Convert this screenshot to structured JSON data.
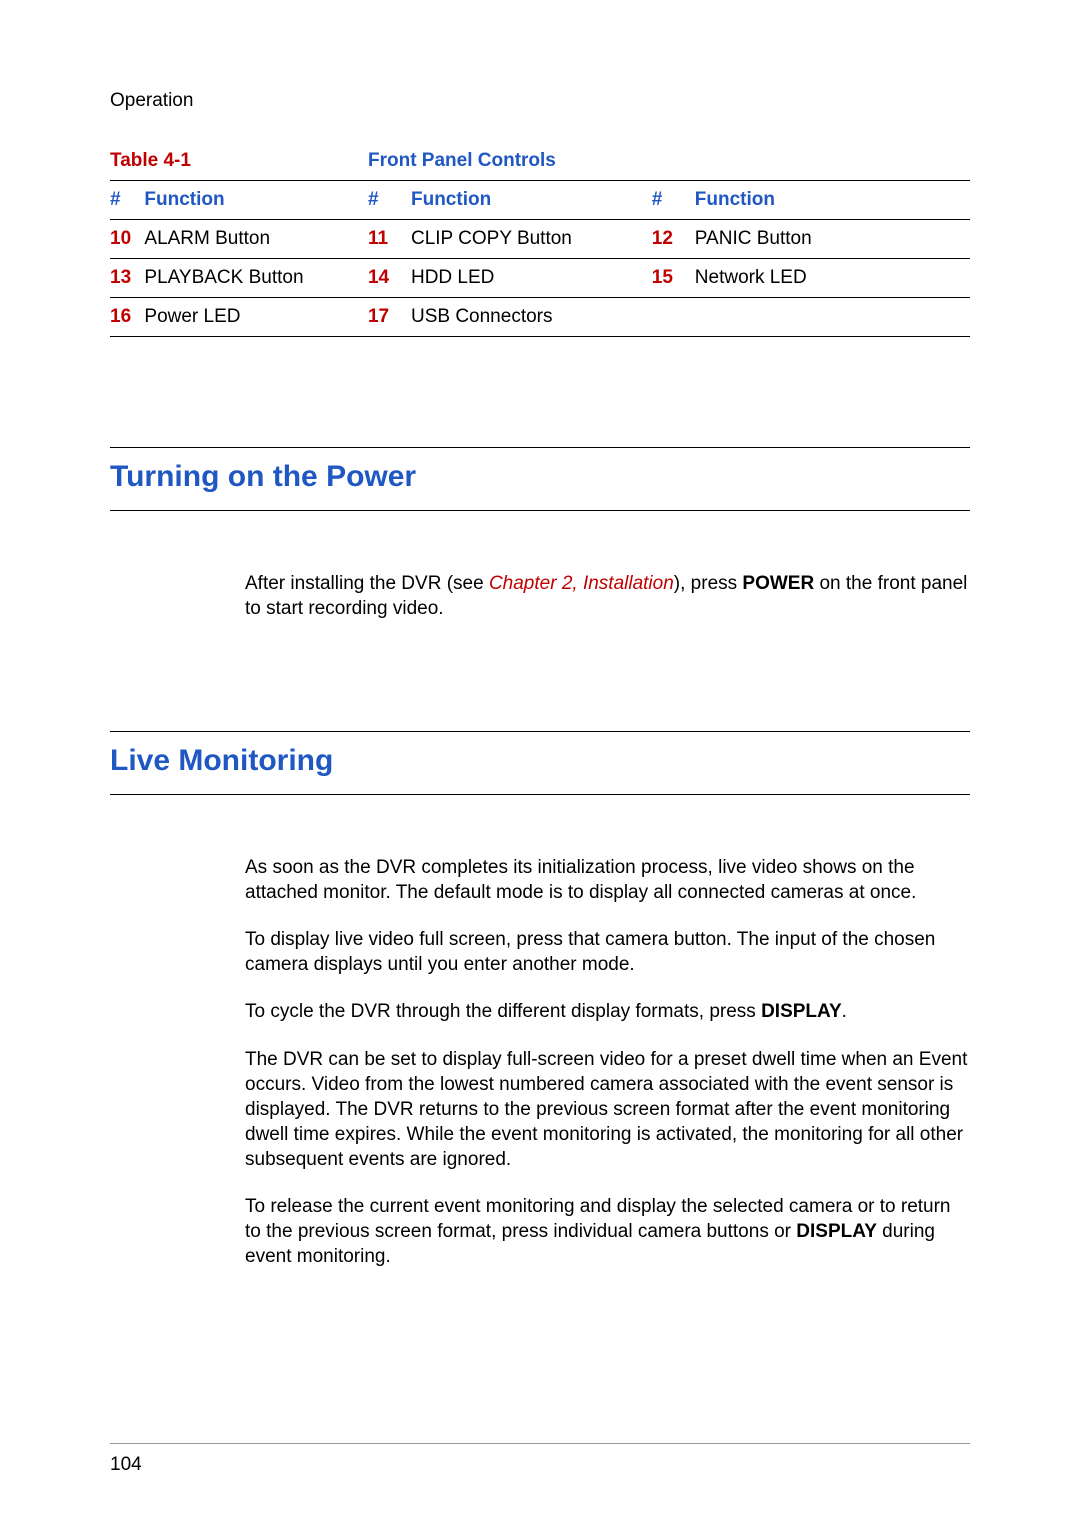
{
  "header": "Operation",
  "table": {
    "label": "Table 4-1",
    "name": "Front Panel Controls",
    "col_num": "#",
    "col_func": "Function",
    "rows": [
      {
        "n1": "10",
        "f1": "ALARM Button",
        "n2": "11",
        "f2": "CLIP COPY Button",
        "n3": "12",
        "f3": "PANIC Button"
      },
      {
        "n1": "13",
        "f1": "PLAYBACK Button",
        "n2": "14",
        "f2": "HDD LED",
        "n3": "15",
        "f3": "Network LED"
      },
      {
        "n1": "16",
        "f1": "Power LED",
        "n2": "17",
        "f2": "USB Connectors",
        "n3": "",
        "f3": ""
      }
    ]
  },
  "sections": {
    "power": {
      "title": "Turning on the Power",
      "para_pre": "After installing the DVR (see ",
      "xref": "Chapter 2, Installation",
      "para_mid": "), press ",
      "bold1": "POWER",
      "para_post": " on the front panel to start recording video."
    },
    "live": {
      "title": "Live Monitoring",
      "p1": "As soon as the DVR completes its initialization process, live video shows on the attached monitor. The default mode is to display all connected cameras at once.",
      "p2": "To display live video full screen, press that camera button. The input of the chosen camera displays until you enter another mode.",
      "p3_pre": "To cycle the DVR through the different display formats, press ",
      "p3_bold": "DISPLAY",
      "p3_post": ".",
      "p4": "The DVR can be set to display full-screen video for a preset dwell time when an Event occurs. Video from the lowest numbered camera associated with the event sensor is displayed. The DVR returns to the previous screen format after the event monitoring dwell time expires. While the event monitoring is activated, the monitoring for all other subsequent events are ignored.",
      "p5_pre": "To release the current event monitoring and display the selected camera or to return to the previous screen format, press individual camera buttons or ",
      "p5_bold": "DISPLAY",
      "p5_post": " during event monitoring."
    }
  },
  "page_number": "104",
  "colors": {
    "accent_blue": "#1f57c3",
    "accent_red": "#c00000",
    "text": "#000000",
    "rule_light": "#999999"
  }
}
